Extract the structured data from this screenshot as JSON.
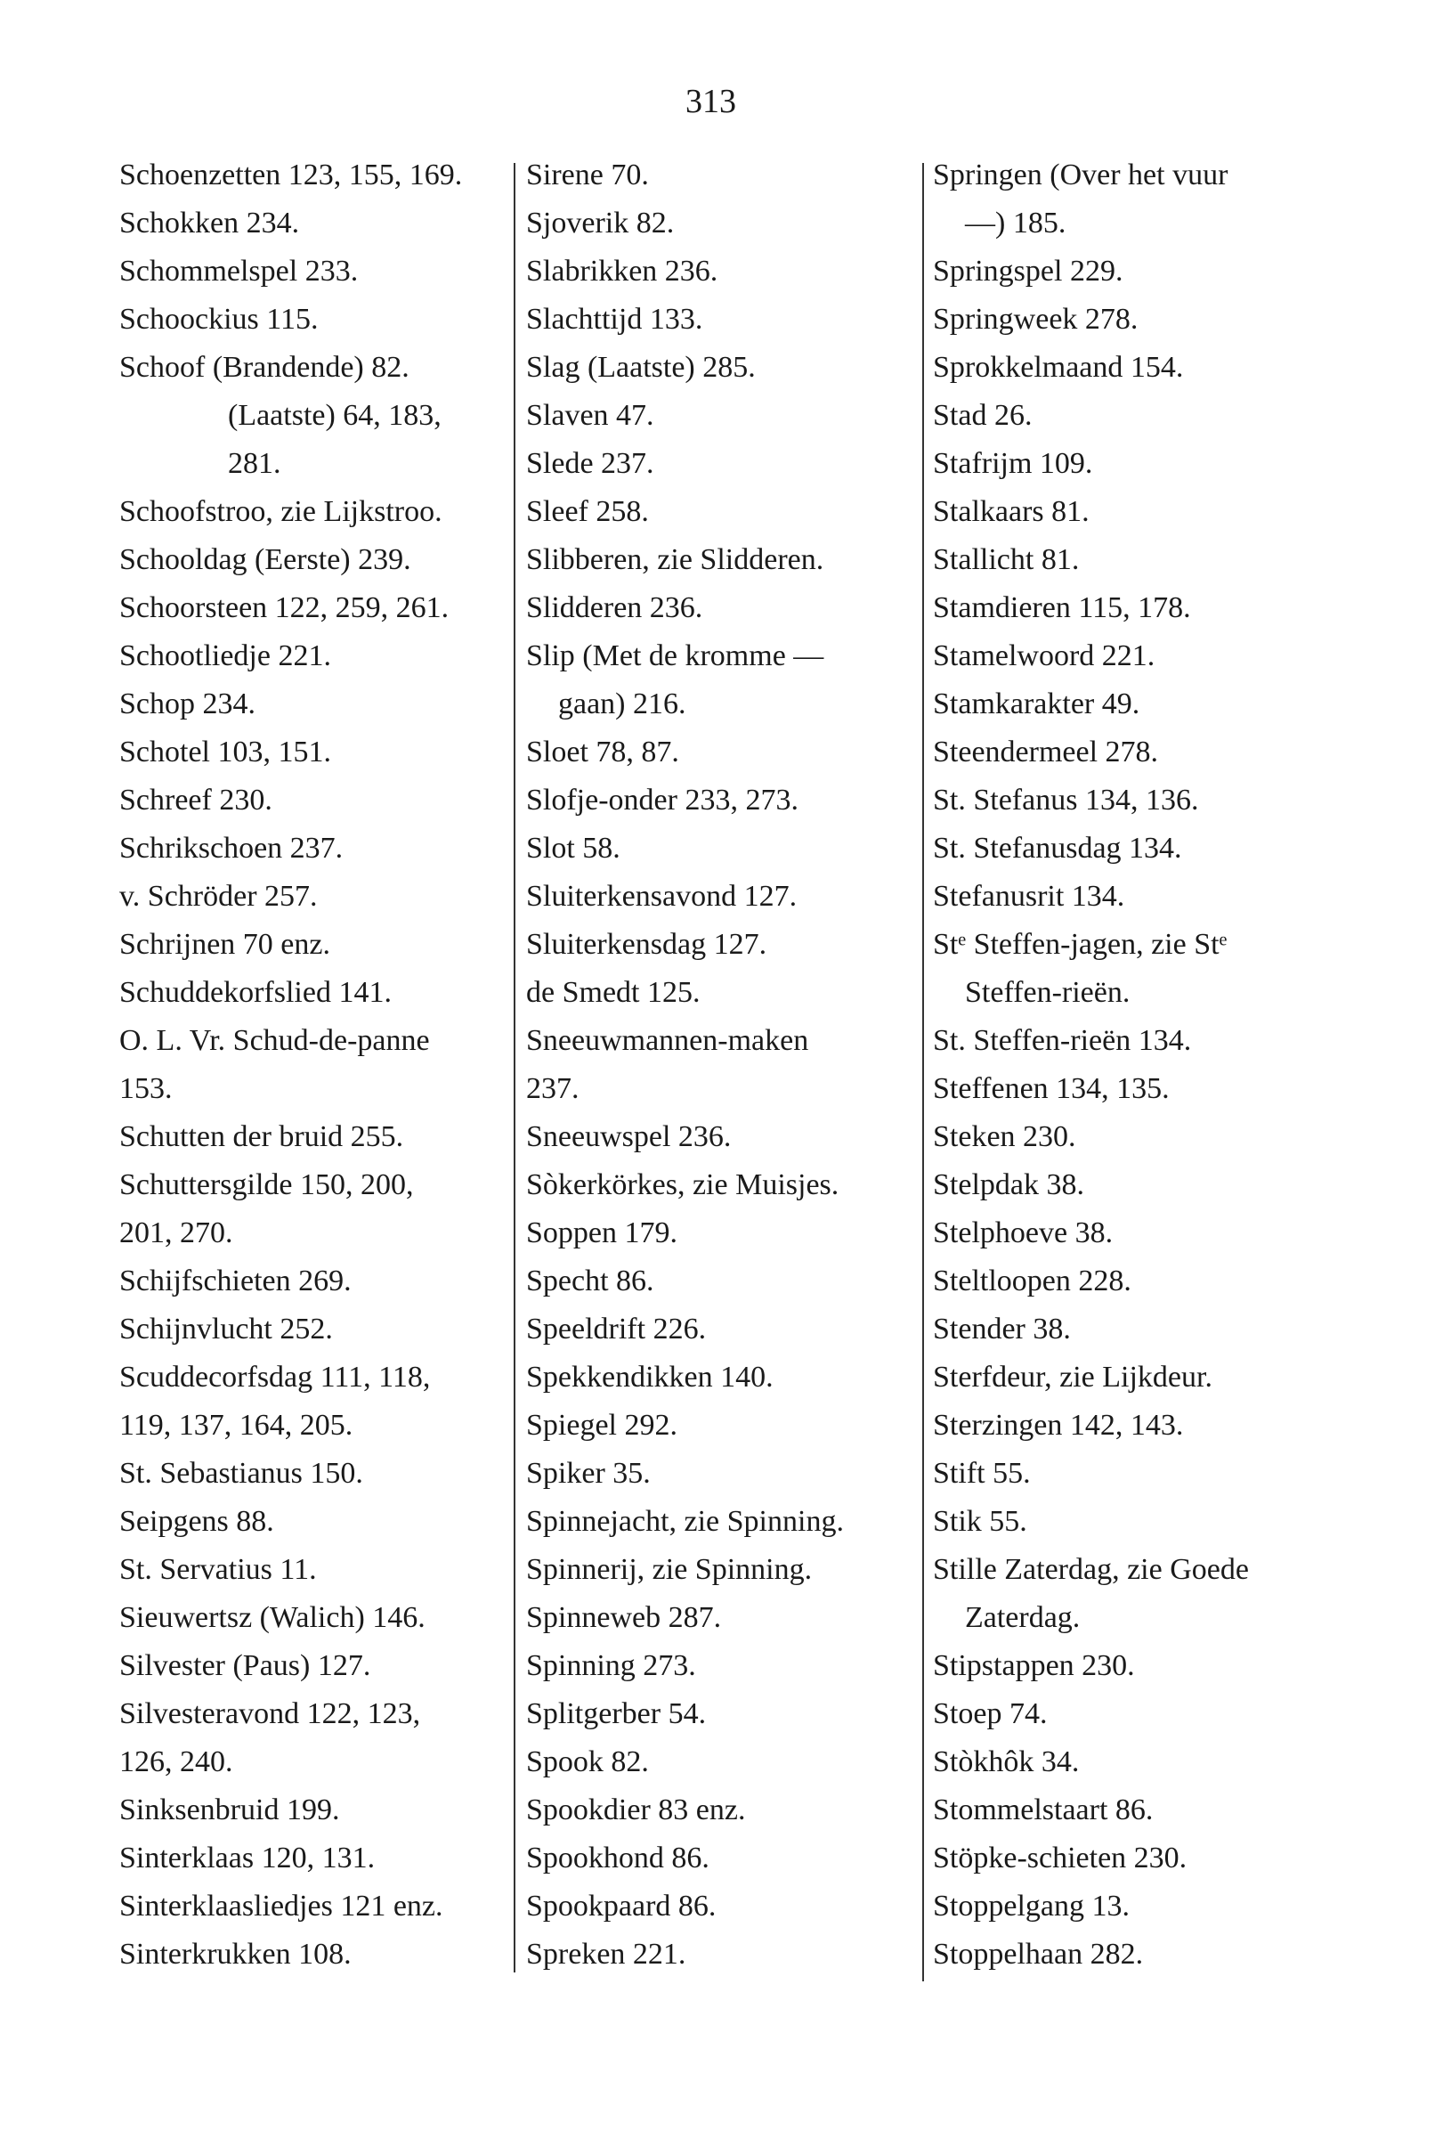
{
  "page_number": "313",
  "columns": [
    [
      {
        "t": "Schoenzetten 123, 155, 169."
      },
      {
        "t": "Schokken 234."
      },
      {
        "t": "Schommelspel 233."
      },
      {
        "t": "Schoockius 115."
      },
      {
        "t": "Schoof (Brandende) 82."
      },
      {
        "t": "(Laatste) 64, 183,",
        "indent": 2
      },
      {
        "t": "281.",
        "indent": 2
      },
      {
        "t": "Schoofstroo, zie Lijkstroo."
      },
      {
        "t": "Schooldag (Eerste) 239."
      },
      {
        "t": "Schoorsteen 122, 259, 261."
      },
      {
        "t": "Schootliedje 221."
      },
      {
        "t": "Schop 234."
      },
      {
        "t": "Schotel 103, 151."
      },
      {
        "t": "Schreef 230."
      },
      {
        "t": "Schrikschoen 237."
      },
      {
        "t": "v. Schröder 257."
      },
      {
        "t": "Schrijnen 70 enz."
      },
      {
        "t": "Schuddekorfslied 141."
      },
      {
        "t": "O. L. Vr. Schud-de-panne"
      },
      {
        "t": "153."
      },
      {
        "t": "Schutten der bruid 255."
      },
      {
        "t": "Schuttersgilde 150, 200,"
      },
      {
        "t": "201, 270."
      },
      {
        "t": "Schijfschieten 269."
      },
      {
        "t": "Schijnvlucht 252."
      },
      {
        "t": "Scuddecorfsdag 111, 118,"
      },
      {
        "t": "119, 137, 164, 205."
      },
      {
        "t": "St. Sebastianus 150."
      },
      {
        "t": "Seipgens 88."
      },
      {
        "t": "St. Servatius 11."
      },
      {
        "t": "Sieuwertsz (Walich) 146."
      },
      {
        "t": "Silvester (Paus) 127."
      },
      {
        "t": "Silvesteravond 122, 123,"
      },
      {
        "t": "126, 240."
      },
      {
        "t": "Sinksenbruid 199."
      },
      {
        "t": "Sinterklaas 120, 131."
      },
      {
        "t": "Sinterklaasliedjes 121 enz."
      },
      {
        "t": "Sinterkrukken 108."
      }
    ],
    [
      {
        "t": "Sirene 70."
      },
      {
        "t": "Sjoverik 82."
      },
      {
        "t": "Slabrikken 236."
      },
      {
        "t": "Slachttijd 133."
      },
      {
        "t": "Slag (Laatste) 285."
      },
      {
        "t": "Slaven 47."
      },
      {
        "t": "Slede 237."
      },
      {
        "t": "Sleef 258."
      },
      {
        "t": "Slibberen, zie Slidderen."
      },
      {
        "t": "Slidderen 236."
      },
      {
        "t": "Slip (Met de kromme —"
      },
      {
        "t": "gaan) 216.",
        "indent": 1
      },
      {
        "t": "Sloet 78, 87."
      },
      {
        "t": "Slofje-onder 233, 273."
      },
      {
        "t": "Slot 58."
      },
      {
        "t": "Sluiterkensavond 127."
      },
      {
        "t": "Sluiterkensdag 127."
      },
      {
        "t": "de Smedt 125."
      },
      {
        "t": "Sneeuwmannen-maken"
      },
      {
        "t": "237."
      },
      {
        "t": "Sneeuwspel 236."
      },
      {
        "t": "Sòkerkörkes, zie Muisjes."
      },
      {
        "t": "Soppen 179."
      },
      {
        "t": "Specht 86."
      },
      {
        "t": "Speeldrift 226."
      },
      {
        "t": "Spekkendikken 140."
      },
      {
        "t": "Spiegel 292."
      },
      {
        "t": "Spiker 35."
      },
      {
        "t": "Spinnejacht, zie Spinning."
      },
      {
        "t": "Spinnerij, zie Spinning."
      },
      {
        "t": "Spinneweb 287."
      },
      {
        "t": "Spinning 273."
      },
      {
        "t": "Splitgerber 54."
      },
      {
        "t": "Spook 82."
      },
      {
        "t": "Spookdier 83 enz."
      },
      {
        "t": "Spookhond 86."
      },
      {
        "t": "Spookpaard 86."
      },
      {
        "t": "Spreken 221."
      }
    ],
    [
      {
        "t": "Springen (Over het vuur"
      },
      {
        "t": "—) 185.",
        "indent": 1
      },
      {
        "t": "Springspel 229."
      },
      {
        "t": "Springweek 278."
      },
      {
        "t": "Sprokkelmaand 154."
      },
      {
        "t": "Stad 26."
      },
      {
        "t": "Stafrijm 109."
      },
      {
        "t": "Stalkaars 81."
      },
      {
        "t": "Stallicht 81."
      },
      {
        "t": "Stamdieren 115, 178."
      },
      {
        "t": "Stamelwoord 221."
      },
      {
        "t": "Stamkarakter 49."
      },
      {
        "t": "Steendermeel 278."
      },
      {
        "t": "St. Stefanus 134, 136."
      },
      {
        "t": "St. Stefanusdag 134."
      },
      {
        "t": "Stefanusrit 134."
      },
      {
        "t": "Stᵉ Steffen-jagen, zie Stᵉ"
      },
      {
        "t": "Steffen-rieën.",
        "indent": 1
      },
      {
        "t": "St. Steffen-rieën 134."
      },
      {
        "t": "Steffenen 134, 135."
      },
      {
        "t": "Steken 230."
      },
      {
        "t": "Stelpdak 38."
      },
      {
        "t": "Stelphoeve 38."
      },
      {
        "t": "Steltloopen 228."
      },
      {
        "t": "Stender 38."
      },
      {
        "t": "Sterfdeur, zie Lijkdeur."
      },
      {
        "t": "Sterzingen 142, 143."
      },
      {
        "t": "Stift 55."
      },
      {
        "t": "Stik 55."
      },
      {
        "t": "Stille Zaterdag, zie Goede"
      },
      {
        "t": "Zaterdag.",
        "indent": 1
      },
      {
        "t": "Stipstappen 230."
      },
      {
        "t": "Stoep 74."
      },
      {
        "t": "Stòkhôk 34."
      },
      {
        "t": "Stommelstaart 86."
      },
      {
        "t": "Stöpke-schieten 230."
      },
      {
        "t": "Stoppelgang 13."
      },
      {
        "t": "Stoppelhaan 282."
      }
    ]
  ]
}
